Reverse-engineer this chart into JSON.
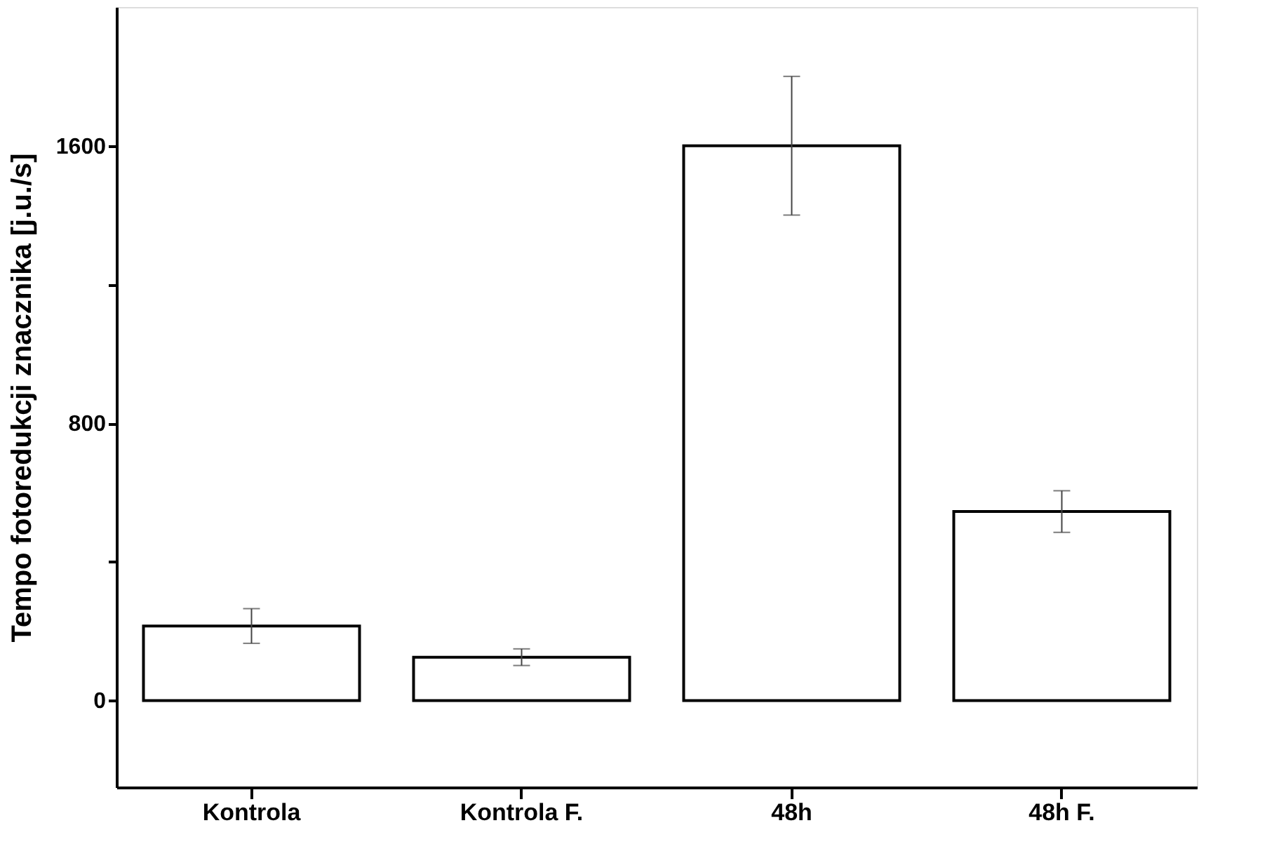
{
  "chart_data": {
    "type": "bar",
    "ylabel": "Tempo fotoredukcji znacznika [j.u./s]",
    "categories": [
      "Kontrola",
      "Kontrola F.",
      "48h",
      "48h F."
    ],
    "values": [
      215,
      125,
      1600,
      545
    ],
    "errors": [
      50,
      24,
      200,
      60
    ],
    "color": "#ffffff",
    "ylim": [
      -250,
      2000
    ],
    "yticks": [
      0,
      {
        "value": 400,
        "label": null
      },
      800,
      {
        "value": 1200,
        "label": null
      },
      1600
    ],
    "grid": false
  }
}
